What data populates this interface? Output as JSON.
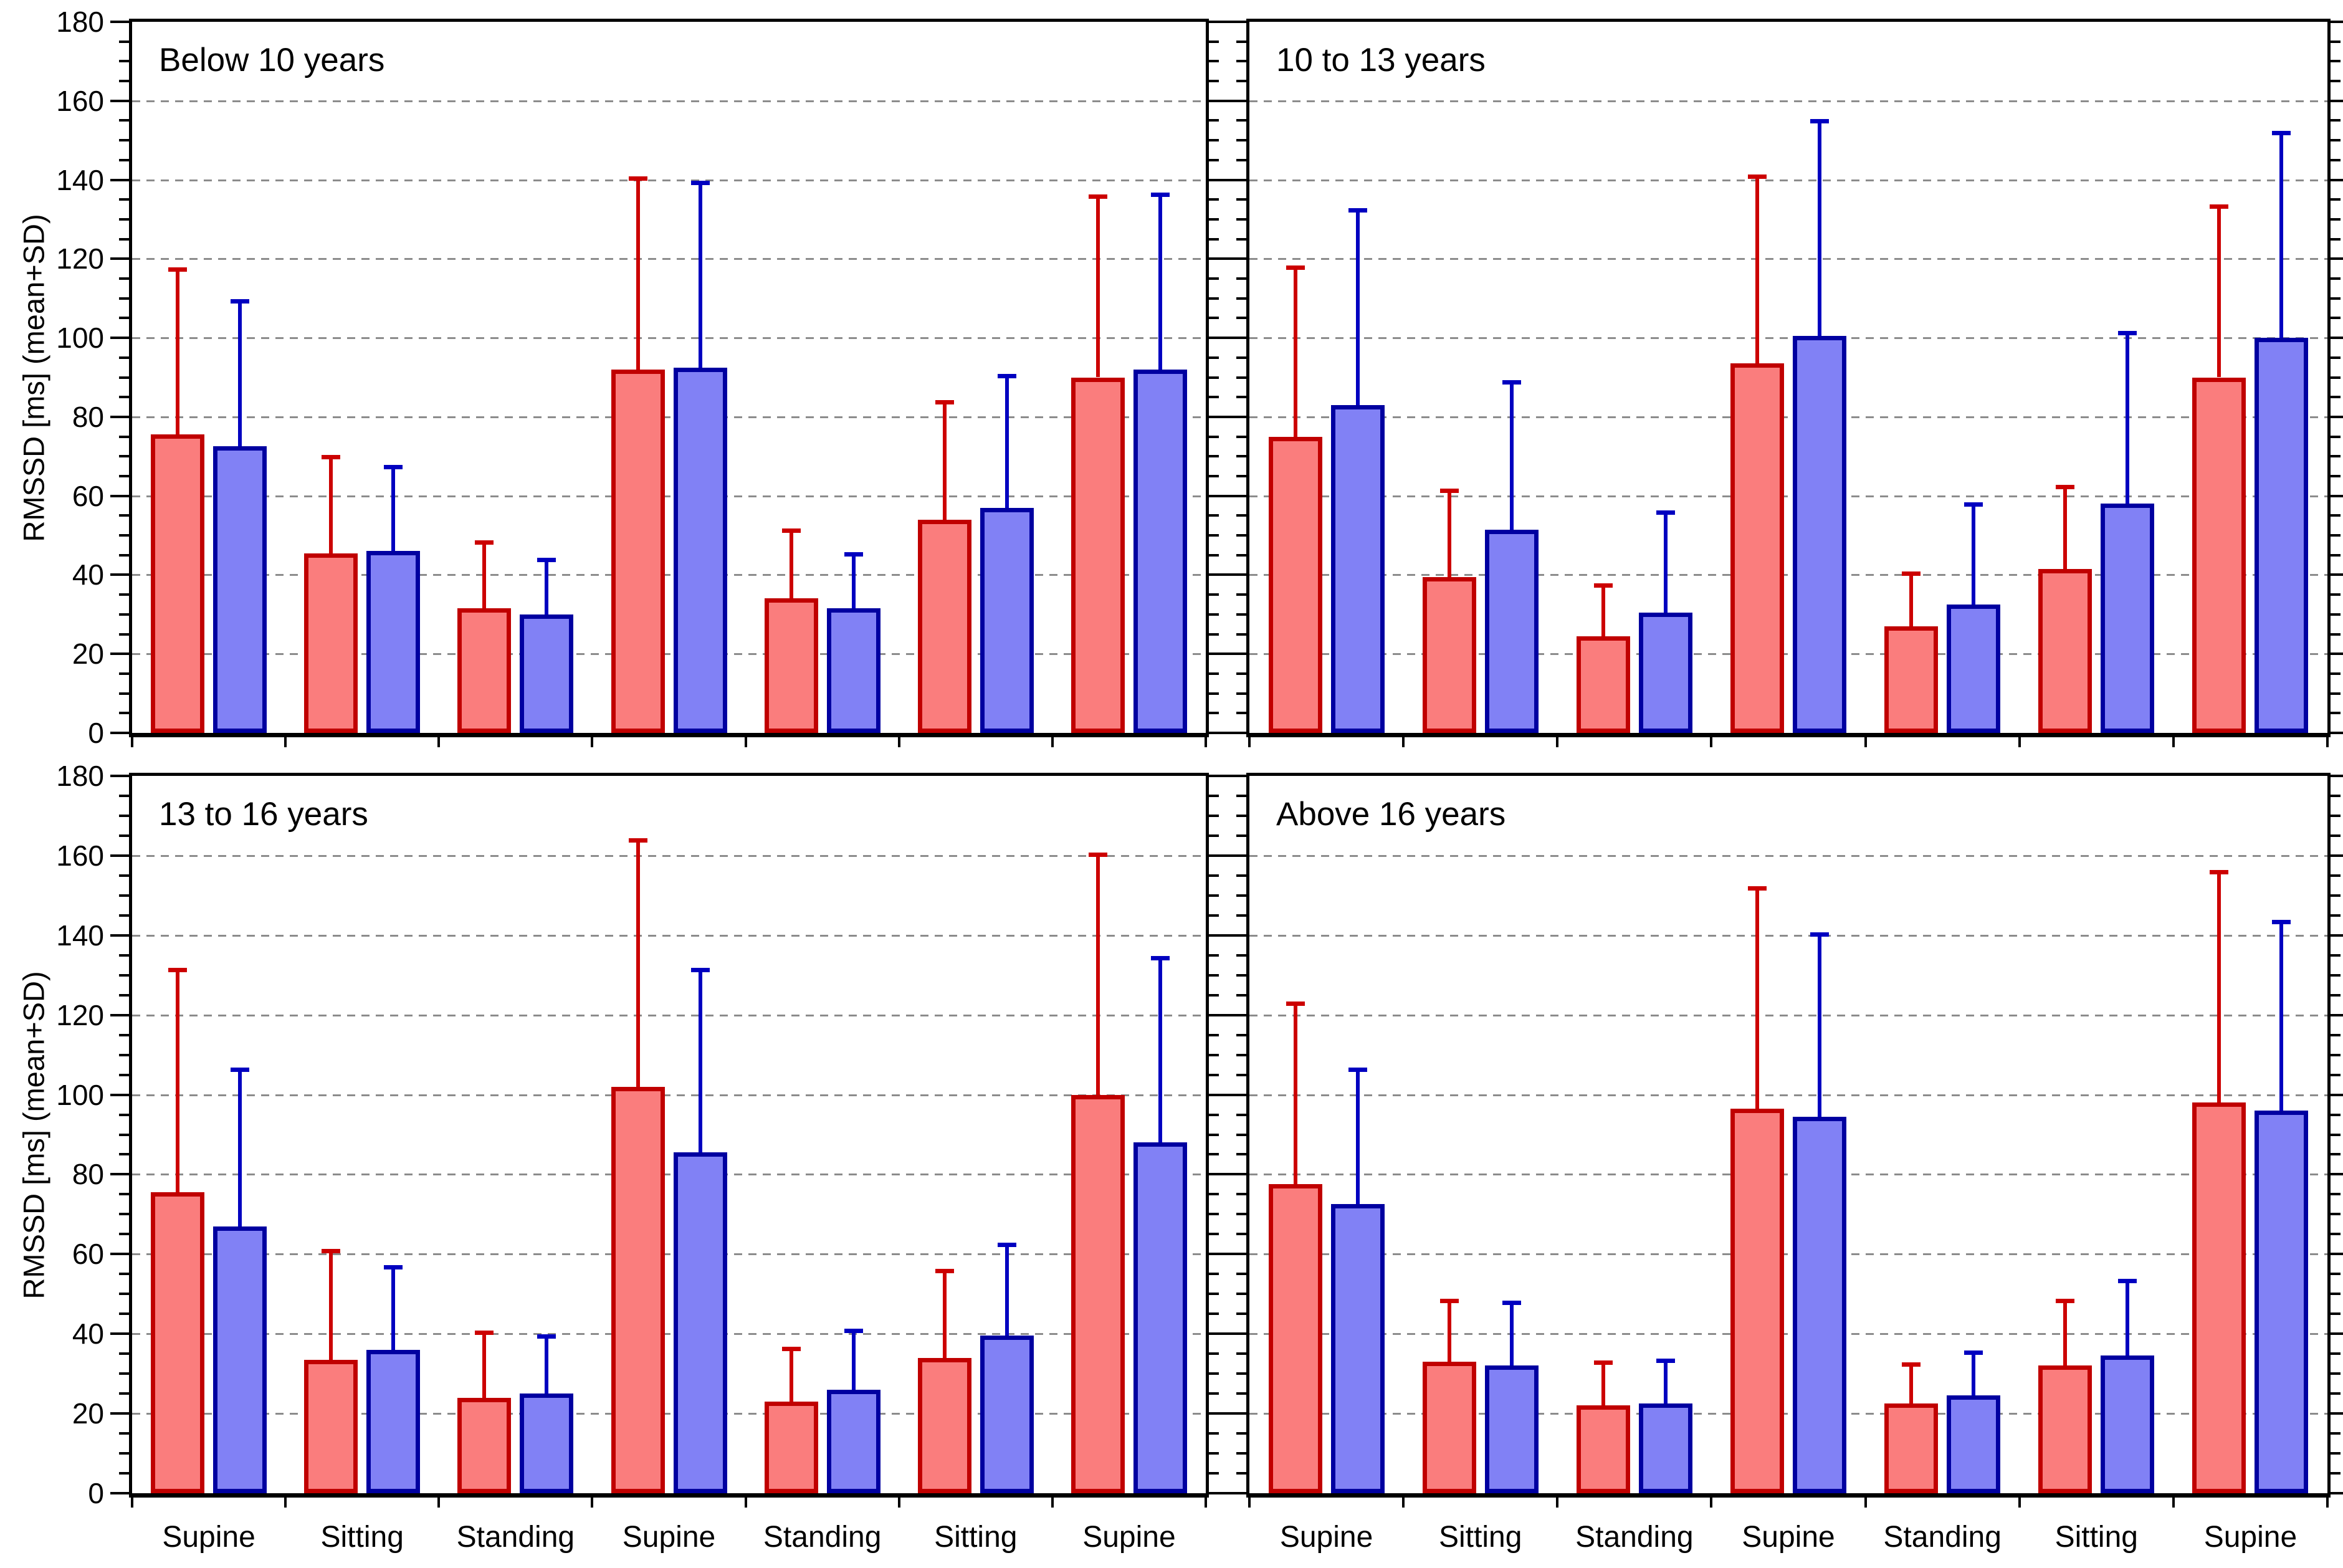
{
  "figure": {
    "ylabel": "RMSSD [ms] (mean+SD)",
    "ylim": [
      0,
      180
    ],
    "ytick_step": 20,
    "yminor_step": 5,
    "ytick_labels": [
      "0",
      "20",
      "40",
      "60",
      "80",
      "100",
      "120",
      "140",
      "160",
      "180"
    ],
    "grid_color": "#8c8c8c",
    "axis_color": "#000000",
    "red_fill": "#FA7D7D",
    "red_border": "#C00000",
    "red_error": "#CC0000",
    "blue_fill": "#8181F5",
    "blue_border": "#0000A0",
    "blue_error": "#0000C0"
  },
  "chart_data": [
    {
      "type": "bar",
      "position": "top-left",
      "title": "Below 10 years",
      "categories": [
        "Supine",
        "Sitting",
        "Standing",
        "Supine",
        "Standing",
        "Sitting",
        "Supine"
      ],
      "ylim": [
        0,
        180
      ],
      "grid": true,
      "legend": "none",
      "series": [
        {
          "name": "red",
          "fill": "#FA7D7D",
          "border": "#C00000",
          "means": [
            75.5,
            45.5,
            31.5,
            92,
            34,
            54,
            90
          ],
          "mean_plus_sd": [
            117.5,
            70,
            48.5,
            140.5,
            51.5,
            84,
            136
          ]
        },
        {
          "name": "blue",
          "fill": "#8181F5",
          "border": "#0000A0",
          "means": [
            72.5,
            46,
            30,
            92.5,
            31.5,
            57,
            92
          ],
          "mean_plus_sd": [
            109.5,
            67.5,
            44,
            139.5,
            45.5,
            90.5,
            136.5
          ]
        }
      ]
    },
    {
      "type": "bar",
      "position": "top-right",
      "title": "10 to 13 years",
      "categories": [
        "Supine",
        "Sitting",
        "Standing",
        "Supine",
        "Standing",
        "Sitting",
        "Supine"
      ],
      "ylim": [
        0,
        180
      ],
      "grid": true,
      "legend": "none",
      "series": [
        {
          "name": "red",
          "fill": "#FA7D7D",
          "border": "#C00000",
          "means": [
            75,
            39.5,
            24.5,
            93.5,
            27,
            41.5,
            90
          ],
          "mean_plus_sd": [
            118,
            61.5,
            37.5,
            141,
            40.5,
            62.5,
            133.5
          ]
        },
        {
          "name": "blue",
          "fill": "#8181F5",
          "border": "#0000A0",
          "means": [
            83,
            51.5,
            30.5,
            100.5,
            32.5,
            58,
            100
          ],
          "mean_plus_sd": [
            132.5,
            89,
            56,
            155,
            58,
            101.5,
            152
          ]
        }
      ]
    },
    {
      "type": "bar",
      "position": "bottom-left",
      "title": "13 to 16 years",
      "categories": [
        "Supine",
        "Sitting",
        "Standing",
        "Supine",
        "Standing",
        "Sitting",
        "Supine"
      ],
      "ylim": [
        0,
        180
      ],
      "grid": true,
      "legend": "none",
      "series": [
        {
          "name": "red",
          "fill": "#FA7D7D",
          "border": "#C00000",
          "means": [
            75.5,
            33.5,
            24,
            102,
            23,
            34,
            100
          ],
          "mean_plus_sd": [
            131.5,
            61,
            40.5,
            164,
            36.5,
            56,
            160.5
          ]
        },
        {
          "name": "blue",
          "fill": "#8181F5",
          "border": "#0000A0",
          "means": [
            67,
            36,
            25,
            85.5,
            26,
            39.5,
            88
          ],
          "mean_plus_sd": [
            106.5,
            57,
            39.5,
            131.5,
            41,
            62.5,
            134.5
          ]
        }
      ]
    },
    {
      "type": "bar",
      "position": "bottom-right",
      "title": "Above 16 years",
      "categories": [
        "Supine",
        "Sitting",
        "Standing",
        "Supine",
        "Standing",
        "Sitting",
        "Supine"
      ],
      "ylim": [
        0,
        180
      ],
      "grid": true,
      "legend": "none",
      "series": [
        {
          "name": "red",
          "fill": "#FA7D7D",
          "border": "#C00000",
          "means": [
            77.5,
            33,
            22,
            96.5,
            22.5,
            32,
            98
          ],
          "mean_plus_sd": [
            123,
            48.5,
            33,
            152,
            32.5,
            48.5,
            156
          ]
        },
        {
          "name": "blue",
          "fill": "#8181F5",
          "border": "#0000A0",
          "means": [
            72.5,
            32,
            22.5,
            94.5,
            24.5,
            34.5,
            96
          ],
          "mean_plus_sd": [
            106.5,
            48,
            33.5,
            140.5,
            35.5,
            53.5,
            143.5
          ]
        }
      ]
    }
  ]
}
